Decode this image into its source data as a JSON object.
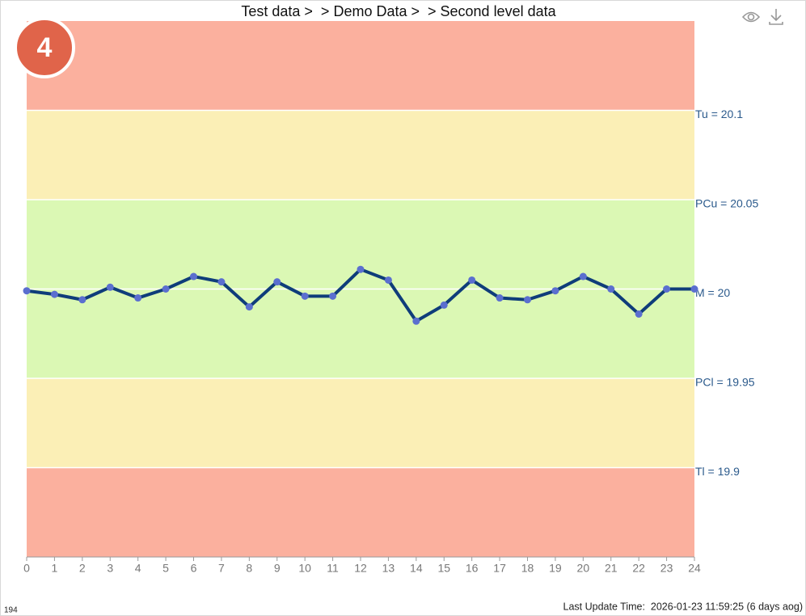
{
  "chart_data": {
    "type": "line",
    "title": "Test data >  > Demo Data >  > Second level data",
    "x": [
      0,
      1,
      2,
      3,
      4,
      5,
      6,
      7,
      8,
      9,
      10,
      11,
      12,
      13,
      14,
      15,
      16,
      17,
      18,
      19,
      20,
      21,
      22,
      23,
      24
    ],
    "series": [
      {
        "color": "#0f3d7a",
        "marker_color": "#5b6fcf",
        "values": [
          19.999,
          19.997,
          19.994,
          20.001,
          19.995,
          20.0,
          20.007,
          20.004,
          19.99,
          20.004,
          19.996,
          19.996,
          20.011,
          20.005,
          19.982,
          19.991,
          20.005,
          19.995,
          19.994,
          19.999,
          20.007,
          20.0,
          19.986,
          20.0,
          20.0
        ]
      }
    ],
    "xlim": [
      0,
      24
    ],
    "xticks": [
      0,
      1,
      2,
      3,
      4,
      5,
      6,
      7,
      8,
      9,
      10,
      11,
      12,
      13,
      14,
      15,
      16,
      17,
      18,
      19,
      20,
      21,
      22,
      23,
      24
    ],
    "ylim": [
      19.85,
      20.15
    ],
    "reference_lines": [
      {
        "value": 20.1,
        "label": "Tu = 20.1"
      },
      {
        "value": 20.05,
        "label": "PCu = 20.05"
      },
      {
        "value": 20,
        "label": "M = 20"
      },
      {
        "value": 19.95,
        "label": "PCl = 19.95"
      },
      {
        "value": 19.9,
        "label": "Tl = 19.9"
      }
    ],
    "bands": [
      {
        "from": 20.1,
        "to": 20.15,
        "color": "#fbb09e"
      },
      {
        "from": 20.05,
        "to": 20.1,
        "color": "#fbefb6"
      },
      {
        "from": 19.95,
        "to": 20.05,
        "color": "#dbf8b4"
      },
      {
        "from": 19.9,
        "to": 19.95,
        "color": "#fbefb6"
      },
      {
        "from": 19.85,
        "to": 19.9,
        "color": "#fbb09e"
      }
    ]
  },
  "badge": "4",
  "footer": {
    "id": "194",
    "update": "Last Update Time:  2026-01-23 11:59:25 (6 days aog)"
  }
}
